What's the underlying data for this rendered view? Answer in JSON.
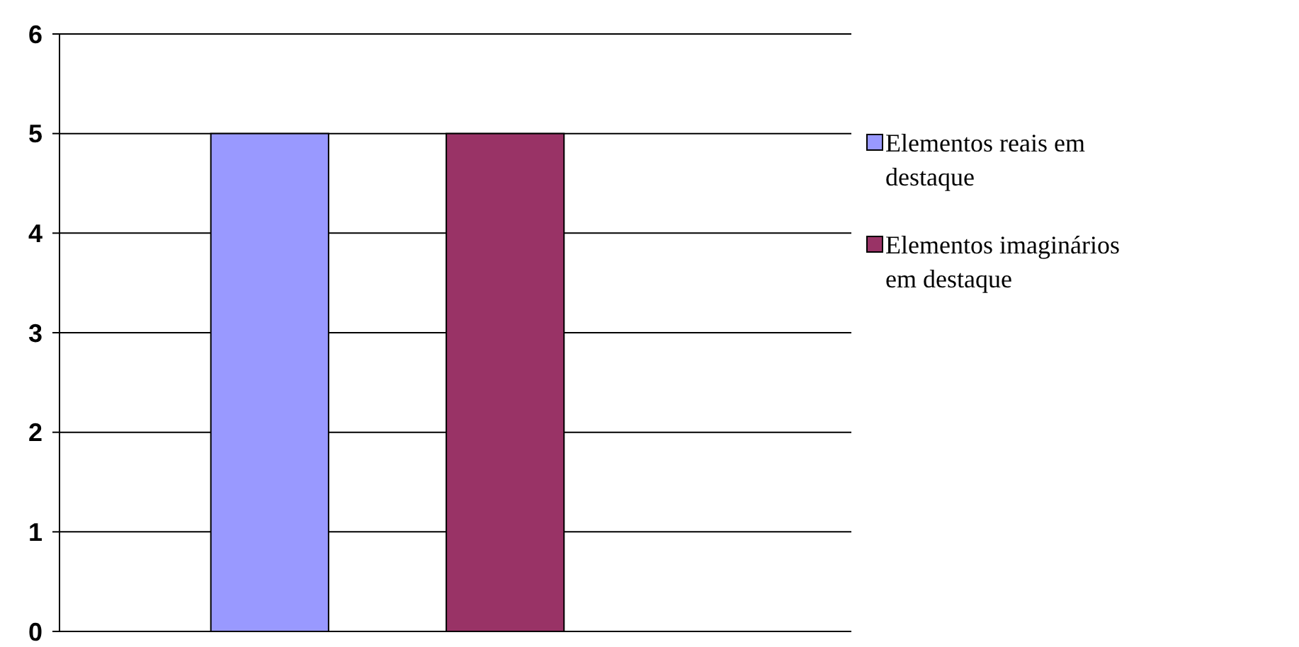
{
  "chart_data": {
    "type": "bar",
    "categories": [
      null
    ],
    "series": [
      {
        "name": "Elementos reais em destaque",
        "color": "#9999ff",
        "values": [
          5
        ]
      },
      {
        "name": "Elementos imaginários em destaque",
        "color": "#993366",
        "values": [
          5
        ]
      }
    ],
    "ylim": [
      0,
      6
    ],
    "yticks": [
      0,
      1,
      2,
      3,
      4,
      5,
      6
    ],
    "grid": "y",
    "legend": "right"
  }
}
